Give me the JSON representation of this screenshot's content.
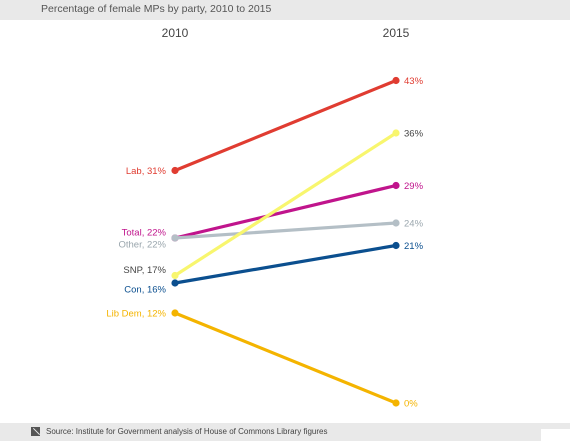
{
  "chart_title": "Percentage of female MPs by party, 2010 to 2015",
  "source": "Source: Institute for Government analysis of House of Commons Library figures",
  "chart_data": {
    "type": "line",
    "title": "Percentage of female MPs by party, 2010 to 2015",
    "x": [
      "2010",
      "2015"
    ],
    "ylim": [
      0,
      43
    ],
    "grid": false,
    "series": [
      {
        "name": "Lab",
        "values": [
          31,
          43
        ],
        "color": "#e03c31",
        "label_2010": "Lab, 31%",
        "label_2015": "43%"
      },
      {
        "name": "Total",
        "values": [
          22,
          29
        ],
        "color": "#c0148c",
        "label_2010": "Total, 22%",
        "label_2015": "29%"
      },
      {
        "name": "Other",
        "values": [
          22,
          24
        ],
        "color": "#b4bfc6",
        "label_2010": "Other, 22%",
        "label_2015": "24%"
      },
      {
        "name": "SNP",
        "values": [
          17,
          36
        ],
        "color": "#f8f66e",
        "label_2010": "SNP, 17%",
        "label_2015": "36%"
      },
      {
        "name": "Con",
        "values": [
          16,
          21
        ],
        "color": "#0b4f8f",
        "label_2010": "Con, 16%",
        "label_2015": "21%"
      },
      {
        "name": "Lib Dem",
        "values": [
          12,
          0
        ],
        "color": "#f4b400",
        "label_2010": "Lib Dem, 12%",
        "label_2015": "0%"
      }
    ]
  }
}
